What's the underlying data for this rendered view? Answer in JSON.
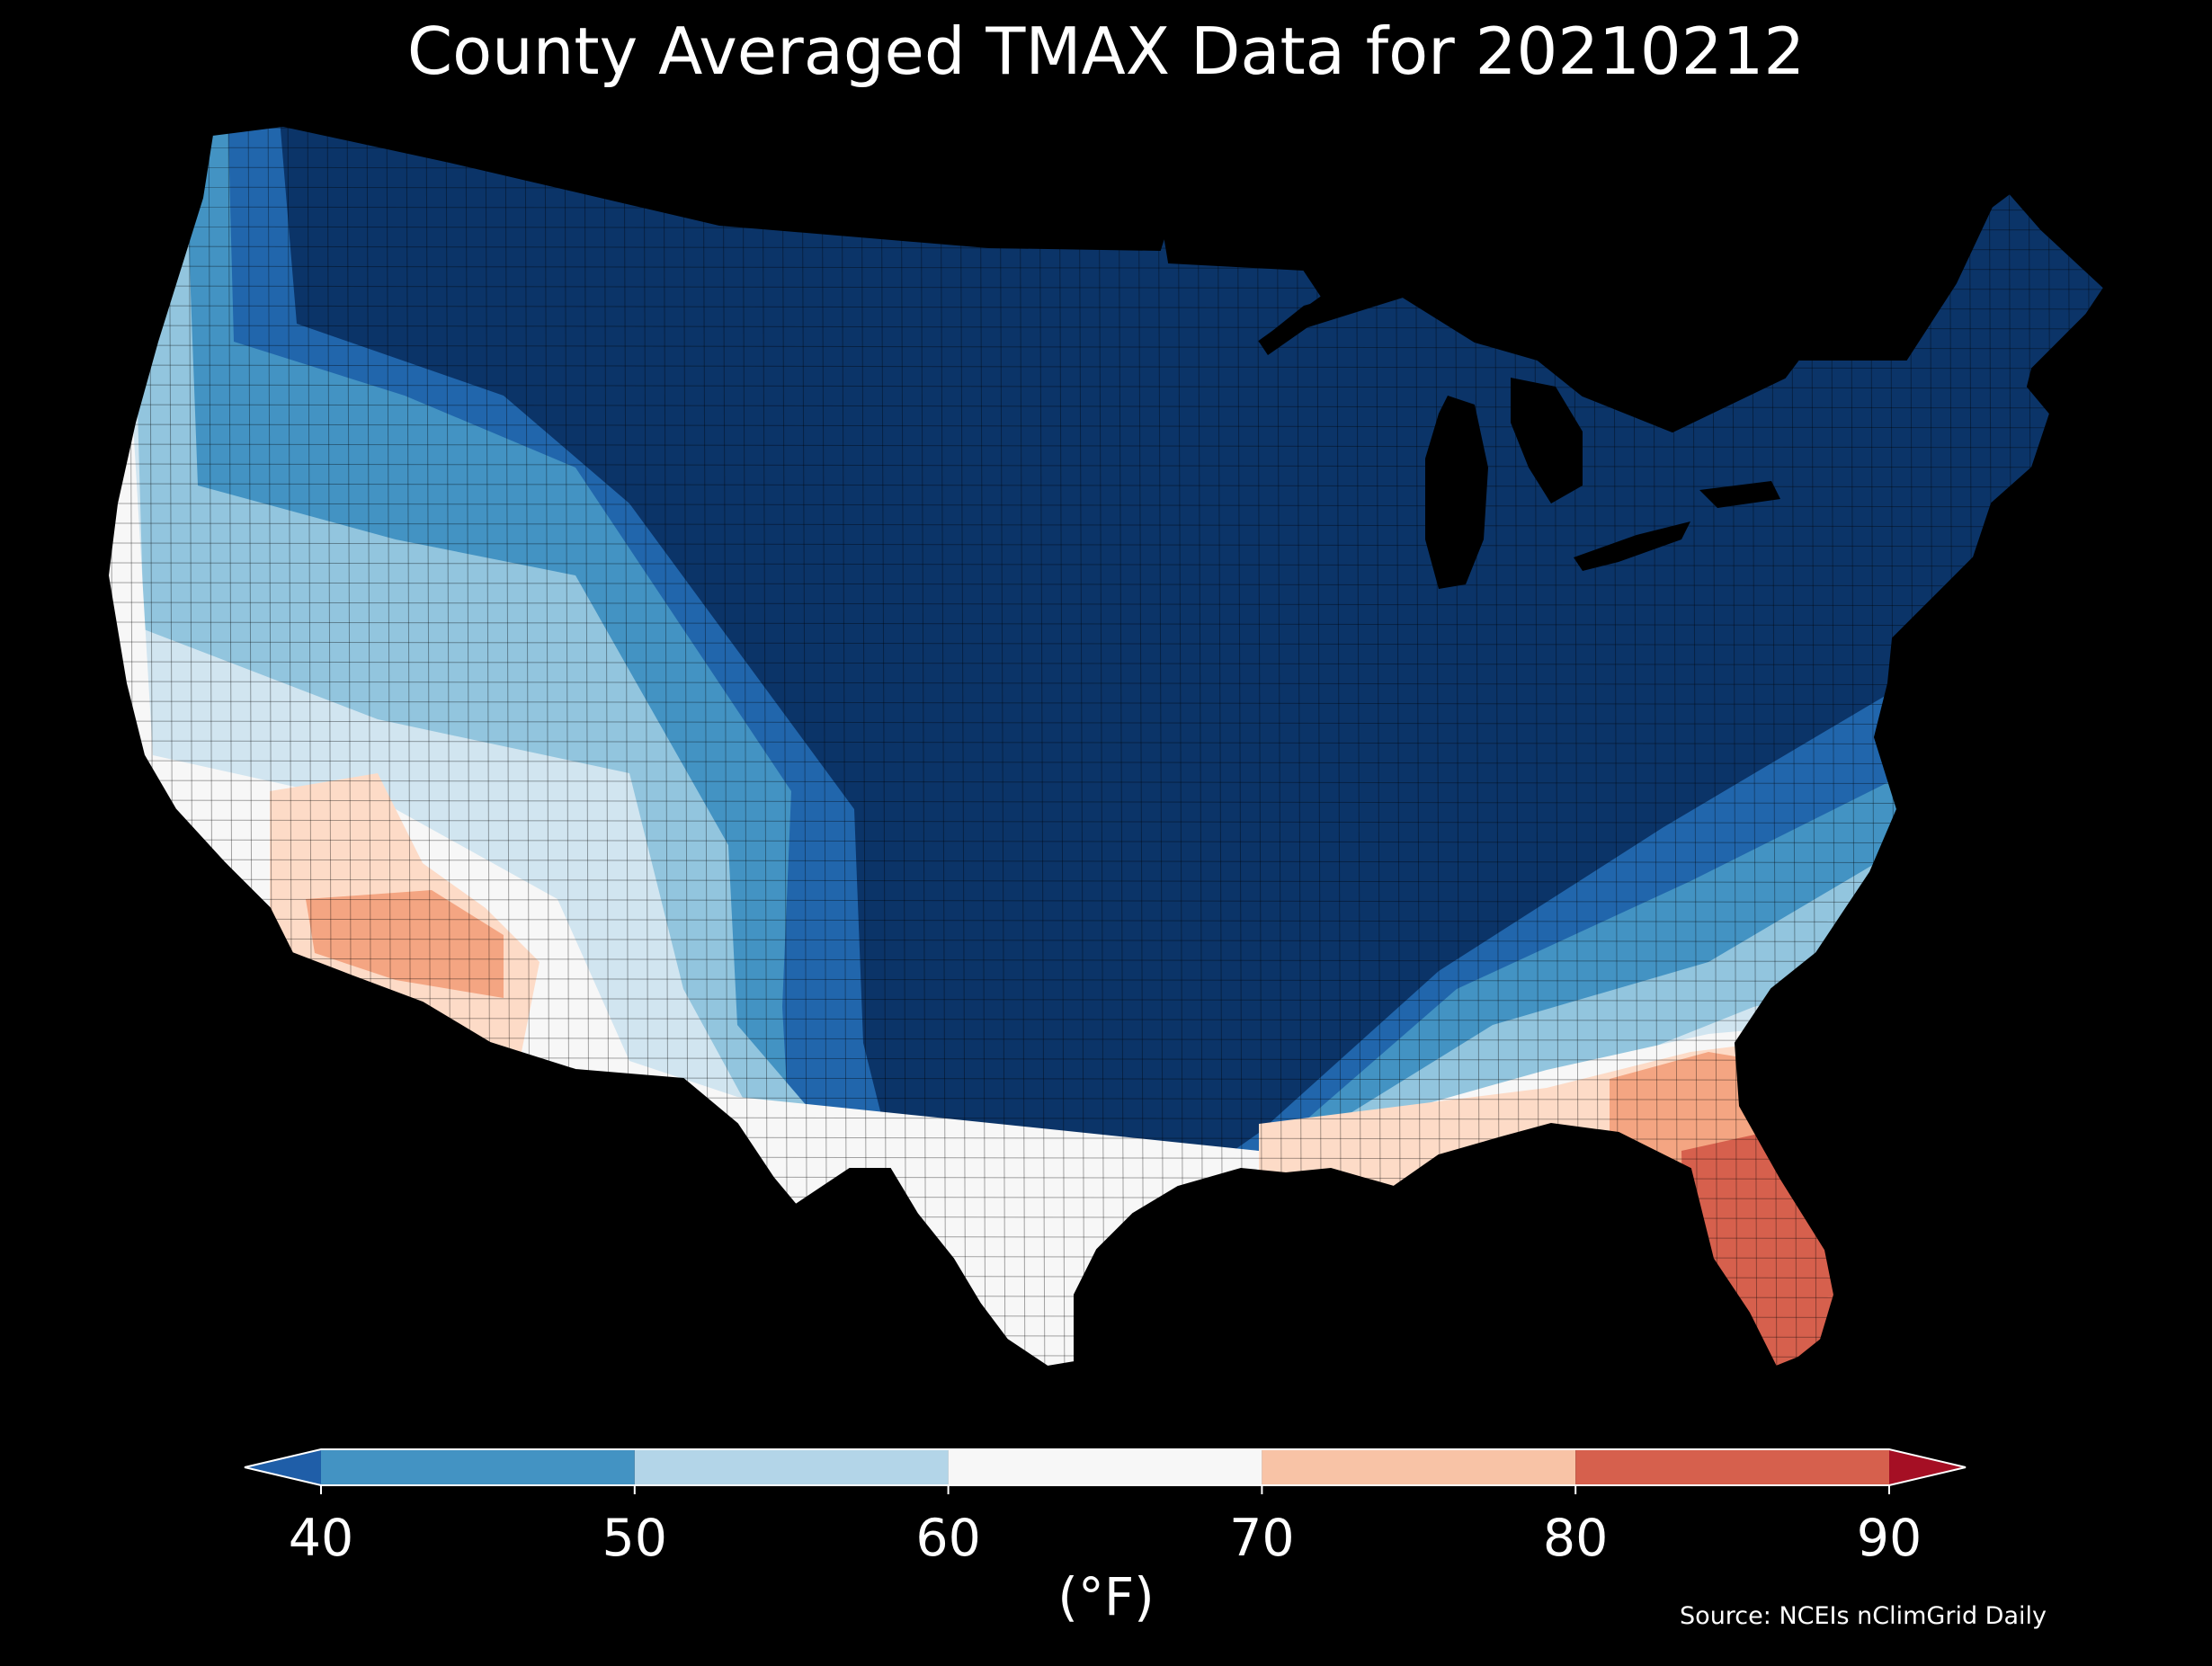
{
  "title": "County Averaged TMAX Data for 20210212",
  "source": "Source: NCEIs nClimGrid Daily",
  "colorbar": {
    "unit_label": "(°F)",
    "ticks": [
      "40",
      "50",
      "60",
      "70",
      "80",
      "90"
    ],
    "bins": [
      {
        "range": [
          40,
          50
        ],
        "color": "#4393c3"
      },
      {
        "range": [
          50,
          60
        ],
        "color": "#b3d5e8"
      },
      {
        "range": [
          60,
          70
        ],
        "color": "#f7f7f7"
      },
      {
        "range": [
          70,
          80
        ],
        "color": "#f8c3a6"
      },
      {
        "range": [
          80,
          90
        ],
        "color": "#d6604d"
      }
    ],
    "under_color": "#1f5ea8",
    "over_color": "#a50f24",
    "extend": "both"
  },
  "map": {
    "region": "Contiguous United States",
    "background": "#000000",
    "county_border_color": "#000000",
    "temperature_colors": {
      "very_cold": "#0b3468",
      "cold": "#2166ac",
      "cool": "#4393c3",
      "mild": "#92c5de",
      "light": "#d1e5f0",
      "neutral": "#f7f7f7",
      "warm": "#fddbc7",
      "warmer": "#f4a582",
      "hot": "#d6604d"
    }
  }
}
